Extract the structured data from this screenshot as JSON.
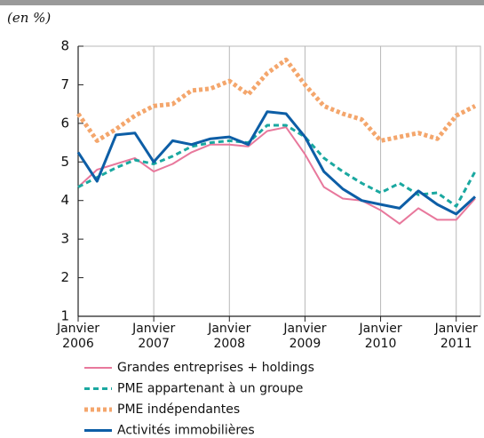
{
  "chart_data": {
    "type": "line",
    "subtitle": "(en %)",
    "x": [
      2006,
      2006.25,
      2006.5,
      2006.75,
      2007,
      2007.25,
      2007.5,
      2007.75,
      2008,
      2008.25,
      2008.5,
      2008.75,
      2009,
      2009.25,
      2009.5,
      2009.75,
      2010,
      2010.25,
      2010.5,
      2010.75,
      2011,
      2011.25
    ],
    "xlim": [
      2006,
      2011.25
    ],
    "xticks": [
      {
        "value": 2006,
        "label": "Janvier 2006"
      },
      {
        "value": 2007,
        "label": "Janvier 2007"
      },
      {
        "value": 2008,
        "label": "Janvier 2008"
      },
      {
        "value": 2009,
        "label": "Janvier 2009"
      },
      {
        "value": 2010,
        "label": "Janvier 2010"
      },
      {
        "value": 2011,
        "label": "Janvier 2011"
      }
    ],
    "ylim": [
      1,
      8
    ],
    "yticks": [
      1,
      2,
      3,
      4,
      5,
      6,
      7,
      8
    ],
    "grid": true,
    "legend": "bottom",
    "series": [
      {
        "name": "Grandes entreprises + holdings",
        "color": "#e8789c",
        "style": "solid",
        "values": [
          4.35,
          4.8,
          4.95,
          5.1,
          4.75,
          4.95,
          5.25,
          5.45,
          5.45,
          5.4,
          5.8,
          5.9,
          5.2,
          4.35,
          4.05,
          4.0,
          3.75,
          3.4,
          3.8,
          3.5,
          3.5,
          4.05
        ]
      },
      {
        "name": "PME appartenant à un groupe",
        "color": "#1aa8a0",
        "style": "dashed",
        "values": [
          4.35,
          4.6,
          4.85,
          5.05,
          4.95,
          5.15,
          5.4,
          5.5,
          5.55,
          5.5,
          5.95,
          5.95,
          5.65,
          5.1,
          4.75,
          4.45,
          4.2,
          4.45,
          4.15,
          4.2,
          3.85,
          4.75
        ]
      },
      {
        "name": "PME indépendantes",
        "color": "#f4a66c",
        "style": "dotted",
        "values": [
          6.25,
          5.55,
          5.85,
          6.2,
          6.45,
          6.5,
          6.85,
          6.9,
          7.1,
          6.75,
          7.3,
          7.65,
          7.0,
          6.45,
          6.25,
          6.1,
          5.55,
          5.65,
          5.75,
          5.6,
          6.2,
          6.45
        ]
      },
      {
        "name": "Activités immobilières",
        "color": "#0d5ea6",
        "style": "thick",
        "values": [
          5.25,
          4.5,
          5.7,
          5.75,
          5.0,
          5.55,
          5.45,
          5.6,
          5.65,
          5.45,
          6.3,
          6.25,
          5.65,
          4.75,
          4.3,
          4.0,
          3.9,
          3.8,
          4.25,
          3.9,
          3.65,
          4.1
        ]
      }
    ]
  }
}
